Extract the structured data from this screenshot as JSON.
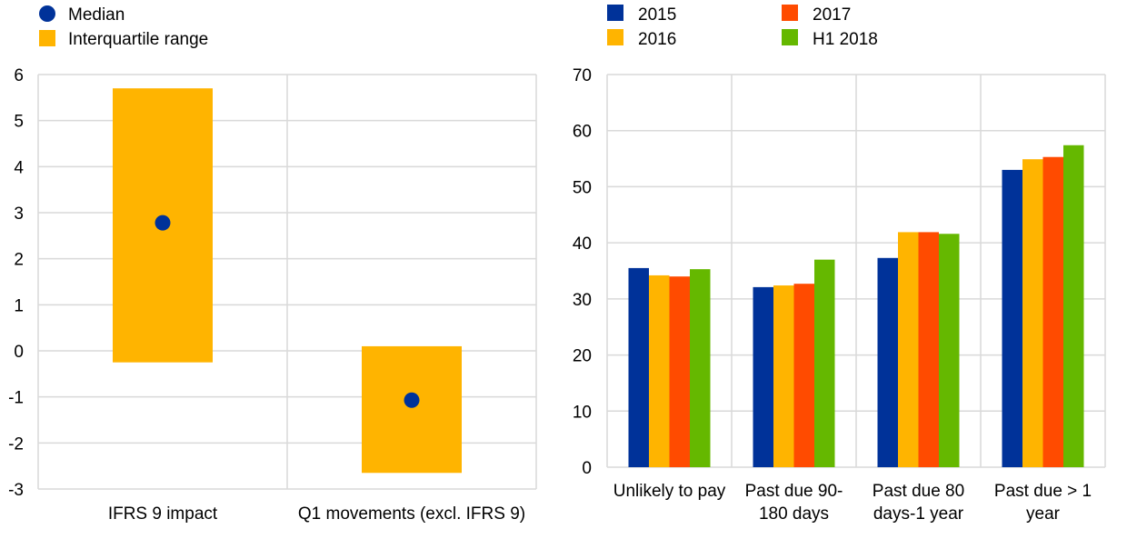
{
  "chart_data": [
    {
      "type": "box",
      "title": "",
      "legend": [
        {
          "label": "Median",
          "color": "#003299",
          "marker": "circle"
        },
        {
          "label": "Interquartile range",
          "color": "#FFB400",
          "marker": "square"
        }
      ],
      "legend_placement": "top-left",
      "categories": [
        "IFRS 9 impact",
        "Q1 movements (excl. IFRS 9)"
      ],
      "iqr_low": [
        -0.25,
        -2.65
      ],
      "iqr_high": [
        5.7,
        0.1
      ],
      "median": [
        2.78,
        -1.07
      ],
      "ylim": [
        -3,
        6
      ],
      "yticks": [
        -3,
        -2,
        -1,
        0,
        1,
        2,
        3,
        4,
        5,
        6
      ],
      "grid": true
    },
    {
      "type": "bar",
      "title": "",
      "legend_placement": "top",
      "categories": [
        [
          "Unlikely to pay"
        ],
        [
          "Past due 90-",
          "180 days"
        ],
        [
          "Past due 80",
          "days-1 year"
        ],
        [
          "Past due > 1",
          "year"
        ]
      ],
      "series": [
        {
          "name": "2015",
          "color": "#003299",
          "values": [
            35.5,
            32.1,
            37.3,
            53.0
          ]
        },
        {
          "name": "2016",
          "color": "#FFB400",
          "values": [
            34.2,
            32.4,
            41.9,
            54.9
          ]
        },
        {
          "name": "2017",
          "color": "#FF4B00",
          "values": [
            34.0,
            32.7,
            41.9,
            55.3
          ]
        },
        {
          "name": "H1 2018",
          "color": "#65B800",
          "values": [
            35.3,
            37.0,
            41.6,
            57.4
          ]
        }
      ],
      "ylim": [
        0,
        70
      ],
      "yticks": [
        0,
        10,
        20,
        30,
        40,
        50,
        60,
        70
      ],
      "grid": true
    }
  ]
}
